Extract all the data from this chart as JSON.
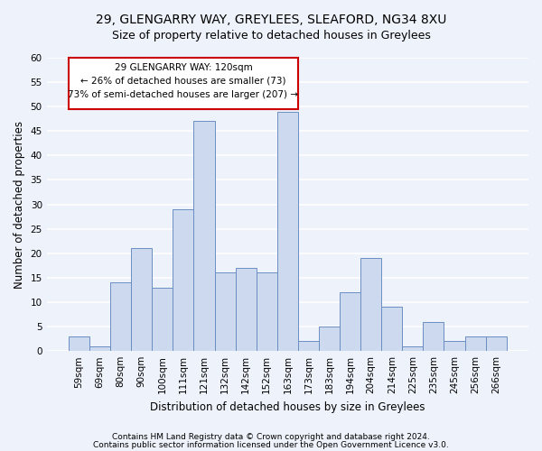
{
  "title1": "29, GLENGARRY WAY, GREYLEES, SLEAFORD, NG34 8XU",
  "title2": "Size of property relative to detached houses in Greylees",
  "xlabel": "Distribution of detached houses by size in Greylees",
  "ylabel": "Number of detached properties",
  "categories": [
    "59sqm",
    "69sqm",
    "80sqm",
    "90sqm",
    "100sqm",
    "111sqm",
    "121sqm",
    "132sqm",
    "142sqm",
    "152sqm",
    "163sqm",
    "173sqm",
    "183sqm",
    "194sqm",
    "204sqm",
    "214sqm",
    "225sqm",
    "235sqm",
    "245sqm",
    "256sqm",
    "266sqm"
  ],
  "values": [
    3,
    1,
    14,
    21,
    13,
    29,
    47,
    16,
    17,
    16,
    49,
    2,
    5,
    12,
    19,
    9,
    1,
    6,
    2,
    3,
    3
  ],
  "bar_color": "#ccd9ee",
  "bar_edge_color": "#6b8ec2",
  "annotation_line1": "29 GLENGARRY WAY: 120sqm",
  "annotation_line2": "← 26% of detached houses are smaller (73)",
  "annotation_line3": "73% of semi-detached houses are larger (207) →",
  "annotation_box_edge_color": "#cc0000",
  "annotation_box_facecolor": "#ffffff",
  "ylim": [
    0,
    60
  ],
  "yticks": [
    0,
    5,
    10,
    15,
    20,
    25,
    30,
    35,
    40,
    45,
    50,
    55,
    60
  ],
  "footer1": "Contains HM Land Registry data © Crown copyright and database right 2024.",
  "footer2": "Contains public sector information licensed under the Open Government Licence v3.0.",
  "bg_color": "#eef2fa",
  "plot_bg_color": "#eef2fa",
  "grid_color": "#ffffff",
  "title1_fontsize": 10,
  "title2_fontsize": 9,
  "xlabel_fontsize": 8.5,
  "ylabel_fontsize": 8.5,
  "tick_fontsize": 7.5,
  "annotation_fontsize": 7.5,
  "footer_fontsize": 6.5
}
